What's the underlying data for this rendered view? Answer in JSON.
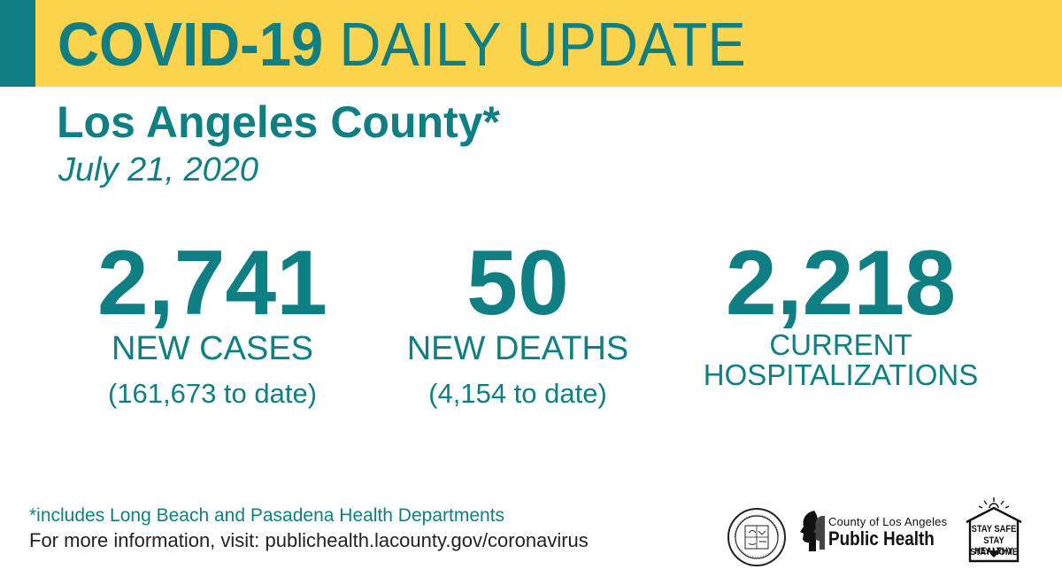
{
  "banner": {
    "title_bold": "COVID-19",
    "title_rest": " DAILY UPDATE",
    "accent_color": "#0f7f83",
    "background_color": "#fbd34c"
  },
  "header": {
    "subtitle": "Los Angeles County*",
    "date": "July 21, 2020"
  },
  "stats": {
    "cases": {
      "value": "2,741",
      "label": "NEW CASES",
      "to_date": "(161,673 to date)"
    },
    "deaths": {
      "value": "50",
      "label": "NEW DEATHS",
      "to_date": "(4,154 to date)"
    },
    "hospitalizations": {
      "value": "2,218",
      "label_line1": "CURRENT",
      "label_line2": "HOSPITALIZATIONS"
    }
  },
  "footer": {
    "footnote": "*includes Long Beach and Pasadena Health Departments",
    "more_info": "For more information, visit: publichealth.lacounty.gov/coronavirus"
  },
  "logos": {
    "seal": {
      "icon": "county-seal-icon"
    },
    "public_health": {
      "small": "County of Los Angeles",
      "big": "Public Health",
      "icon": "profile-faces-icon"
    },
    "stay_safe": {
      "line1": "STAY SAFE",
      "line2": "STAY HEALTHY",
      "line3": "STAY HOME",
      "icon": "house-heart-icon"
    }
  },
  "text_color": "#0f7f83"
}
